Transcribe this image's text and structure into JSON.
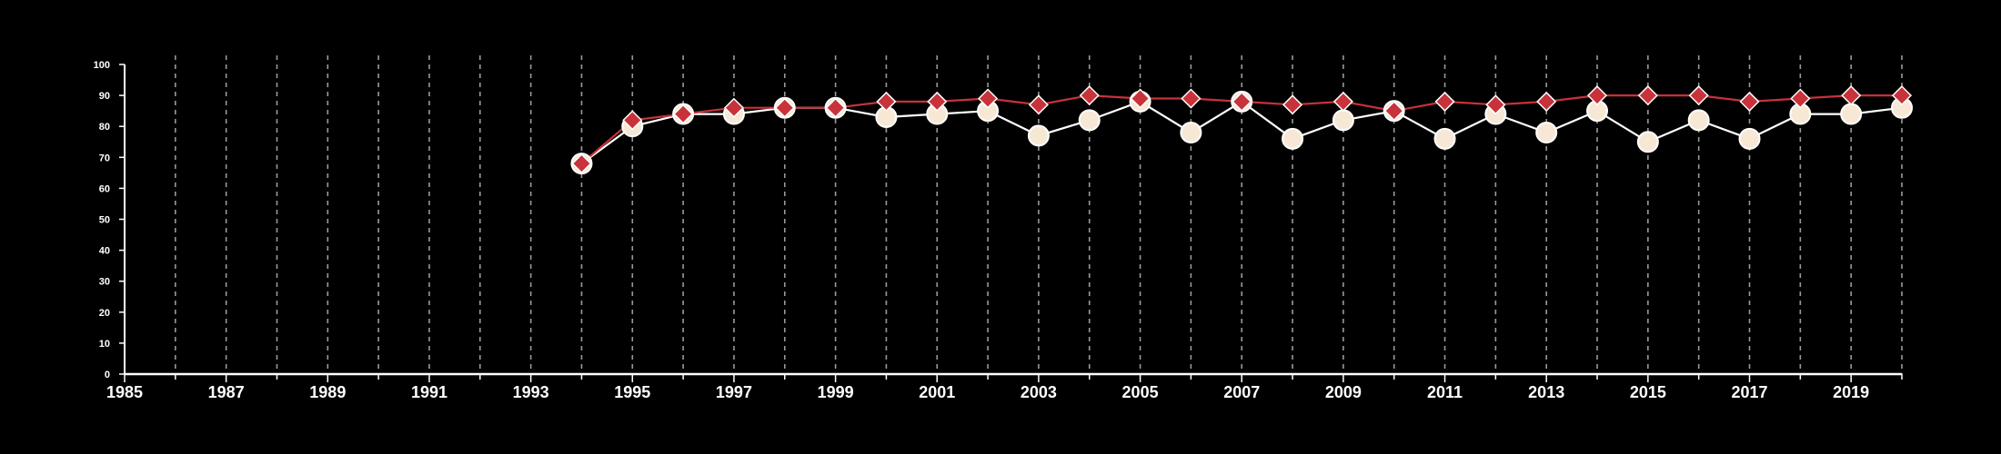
{
  "chart_data": {
    "type": "line",
    "title": "",
    "xlabel": "",
    "ylabel": "",
    "xlim": [
      1985,
      2020
    ],
    "ylim": [
      0,
      100
    ],
    "x_ticks": [
      1985,
      1987,
      1989,
      1991,
      1993,
      1995,
      1997,
      1999,
      2001,
      2003,
      2005,
      2007,
      2009,
      2011,
      2013,
      2015,
      2017,
      2019
    ],
    "x_tick_labels": [
      "1985",
      "1987",
      "1989",
      "1991",
      "1993",
      "1995",
      "1997",
      "1999",
      "2001",
      "2003",
      "2005",
      "2007",
      "2009",
      "2011",
      "2013",
      "2015",
      "2017",
      "2019"
    ],
    "y_ticks": [
      0,
      10,
      20,
      30,
      40,
      50,
      60,
      70,
      80,
      90,
      100
    ],
    "y_tick_labels": [
      "0",
      "10",
      "20",
      "30",
      "40",
      "50",
      "60",
      "70",
      "80",
      "90",
      "100"
    ],
    "vertical_grid": "dashed, every year",
    "x": [
      1994,
      1995,
      1996,
      1997,
      1998,
      1999,
      2000,
      2001,
      2002,
      2003,
      2004,
      2005,
      2006,
      2007,
      2008,
      2009,
      2010,
      2011,
      2012,
      2013,
      2014,
      2015,
      2016,
      2017,
      2018,
      2019,
      2020
    ],
    "series": [
      {
        "marker": "circle",
        "color": "#ffffff",
        "marker_fill": "#f7e8d6",
        "values": [
          68,
          80,
          84,
          84,
          86,
          86,
          83,
          84,
          85,
          77,
          82,
          88,
          78,
          88,
          76,
          82,
          85,
          76,
          84,
          78,
          85,
          75,
          82,
          76,
          84,
          84,
          86
        ]
      },
      {
        "marker": "diamond",
        "color": "#c8323a",
        "marker_fill": "#c8323a",
        "values": [
          68,
          82,
          84,
          86,
          86,
          86,
          88,
          88,
          89,
          87,
          90,
          89,
          89,
          88,
          87,
          88,
          85,
          88,
          87,
          88,
          90,
          90,
          90,
          88,
          89,
          90,
          90
        ]
      }
    ]
  }
}
